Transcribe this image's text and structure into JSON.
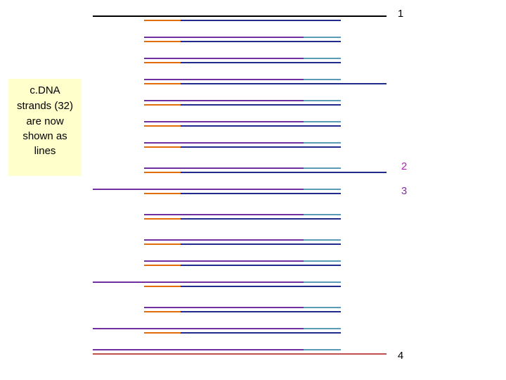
{
  "callout": {
    "lines": [
      "c.DNA",
      "strands (32)",
      "are now",
      "shown as",
      "lines"
    ]
  },
  "markers": [
    "1",
    "2",
    "3",
    "4"
  ]
}
